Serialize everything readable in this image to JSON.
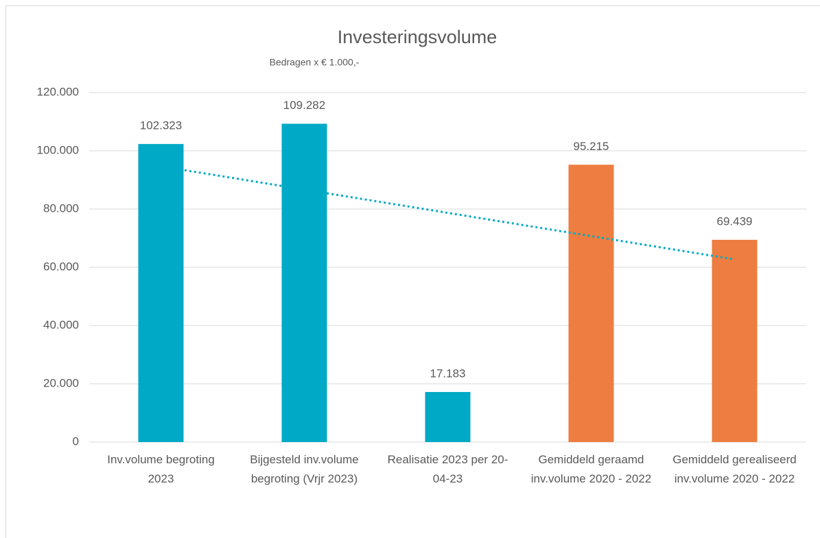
{
  "chart_data": {
    "type": "bar",
    "title": "Investeringsvolume",
    "subtitle": "Bedragen x € 1.000,-",
    "categories": [
      "Inv.volume begroting 2023",
      "Bijgesteld inv.volume begroting (Vrjr 2023)",
      "Realisatie 2023 per 20-04-23",
      "Gemiddeld geraamd inv.volume 2020 - 2022",
      "Gemiddeld gerealiseerd inv.volume 2020 - 2022"
    ],
    "values": [
      102323,
      109282,
      17183,
      95215,
      69439
    ],
    "value_labels": [
      "102.323",
      "109.282",
      "17.183",
      "95.215",
      "69.439"
    ],
    "colors": [
      "#00a9c5",
      "#00a9c5",
      "#00a9c5",
      "#ed7d40",
      "#ed7d40"
    ],
    "ylim": [
      0,
      120000
    ],
    "yticks": [
      0,
      {
        "value": 20000,
        "label": "20.000"
      },
      {
        "value": 40000,
        "label": "40.000"
      },
      {
        "value": 60000,
        "label": "60.000"
      },
      {
        "value": 80000,
        "label": "80.000"
      },
      {
        "value": 100000,
        "label": "100.000"
      },
      {
        "value": 120000,
        "label": "120.000"
      }
    ],
    "grid": true,
    "trendline": {
      "type": "linear",
      "style": "dotted",
      "color": "#00a9c5"
    }
  }
}
